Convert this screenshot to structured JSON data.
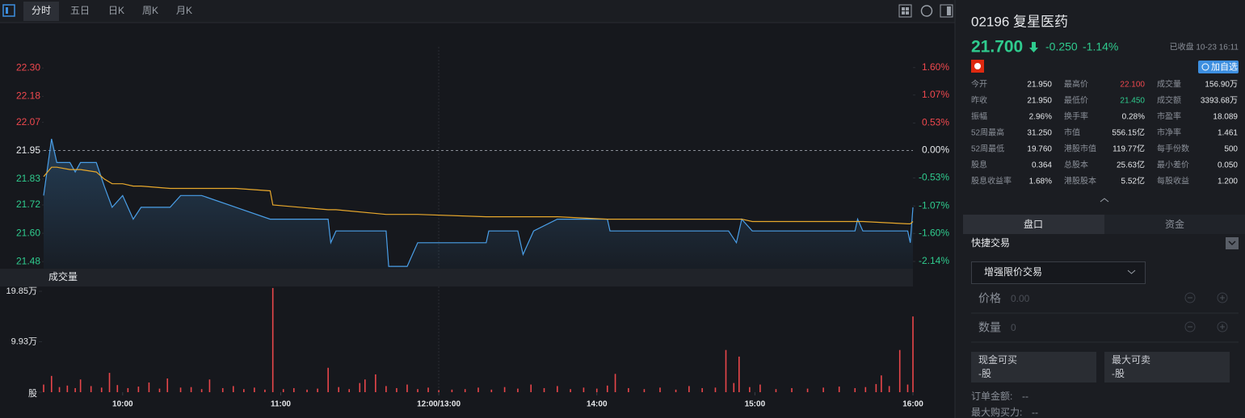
{
  "toolbar": {
    "tabs": [
      "分时",
      "五日",
      "日K",
      "周K",
      "月K"
    ]
  },
  "chart_data": [
    {
      "type": "line",
      "xlim": [
        0,
        330
      ],
      "x": [
        0,
        3,
        5,
        10,
        12,
        14,
        20,
        23,
        26,
        30,
        34,
        37,
        48,
        52,
        60,
        73,
        86,
        87,
        108,
        109,
        111,
        130,
        131,
        138,
        140,
        142,
        168,
        169,
        180,
        182,
        186,
        195,
        214,
        215,
        260,
        263,
        265,
        269,
        308,
        309,
        311,
        328,
        329,
        330
      ],
      "series": [
        {
          "color": "#4a9fe8",
          "values": [
            21.76,
            22.0,
            21.9,
            21.9,
            21.86,
            21.9,
            21.9,
            21.8,
            21.71,
            21.76,
            21.66,
            21.71,
            21.71,
            21.76,
            21.76,
            21.71,
            21.66,
            21.66,
            21.66,
            21.56,
            21.61,
            21.61,
            21.46,
            21.46,
            21.51,
            21.56,
            21.56,
            21.61,
            21.61,
            21.51,
            21.61,
            21.66,
            21.66,
            21.61,
            21.61,
            21.56,
            21.66,
            21.61,
            21.61,
            21.66,
            21.61,
            21.61,
            21.56,
            21.71
          ]
        },
        {
          "color": "#e8a82c",
          "values": [
            21.84,
            21.88,
            21.88,
            21.87,
            21.87,
            21.87,
            21.86,
            21.83,
            21.81,
            21.81,
            21.8,
            21.8,
            21.79,
            21.79,
            21.79,
            21.79,
            21.78,
            21.72,
            21.7,
            21.7,
            21.7,
            21.68,
            21.68,
            21.68,
            21.68,
            21.68,
            21.67,
            21.67,
            21.67,
            21.67,
            21.67,
            21.67,
            21.66,
            21.66,
            21.66,
            21.66,
            21.66,
            21.65,
            21.65,
            21.65,
            21.65,
            21.64,
            21.64,
            21.65
          ]
        }
      ],
      "ylim": [
        21.45,
        22.39
      ],
      "yticks": [
        {
          "value": 22.3,
          "label": "22.30"
        },
        22.18,
        22.07,
        21.95,
        21.83,
        21.72,
        {
          "value": 21.6,
          "label": "21.60"
        },
        21.48
      ],
      "y2lim": [
        -2.28,
        2.0
      ],
      "y2ticks": [
        {
          "value": 1.6,
          "label": "1.60%"
        },
        {
          "value": 1.07,
          "label": "1.07%"
        },
        {
          "value": 0.53,
          "label": "0.53%"
        },
        {
          "value": 0,
          "label": "0.00%"
        },
        {
          "value": -0.53,
          "label": "-0.53%"
        },
        {
          "value": -1.07,
          "label": "-1.07%"
        },
        {
          "value": -1.6,
          "label": "-1.60%"
        },
        {
          "value": -2.14,
          "label": "-2.14%"
        }
      ]
    },
    {
      "type": "bar",
      "title": "成交量",
      "color": "#e8464a",
      "xlim": [
        0,
        330
      ],
      "xticks": [
        {
          "value": 30,
          "label": "10:00"
        },
        {
          "value": 90,
          "label": "11:00"
        },
        {
          "value": 150,
          "label": "12:00/13:00"
        },
        {
          "value": 210,
          "label": "14:00"
        },
        {
          "value": 270,
          "label": "15:00"
        },
        {
          "value": 330,
          "label": "16:00"
        }
      ],
      "x": [
        0,
        3,
        6,
        9,
        12,
        14,
        18,
        22,
        25,
        28,
        32,
        36,
        40,
        44,
        47,
        52,
        56,
        60,
        63,
        68,
        72,
        76,
        80,
        84,
        87,
        91,
        95,
        100,
        104,
        108,
        112,
        116,
        120,
        122,
        126,
        130,
        134,
        138,
        142,
        146,
        150,
        155,
        160,
        165,
        170,
        175,
        180,
        185,
        190,
        195,
        200,
        205,
        210,
        214,
        217,
        222,
        228,
        234,
        240,
        245,
        250,
        255,
        259,
        262,
        264,
        268,
        272,
        278,
        284,
        290,
        296,
        302,
        308,
        312,
        316,
        318,
        321,
        325,
        328,
        330
      ],
      "values": [
        1.5,
        3.2,
        1.0,
        1.3,
        0.8,
        2.5,
        1.2,
        0.9,
        3.8,
        1.4,
        0.8,
        1.1,
        1.9,
        0.7,
        2.7,
        0.9,
        1.0,
        0.6,
        2.5,
        0.8,
        1.2,
        0.6,
        0.9,
        0.5,
        20.5,
        0.6,
        0.8,
        0.5,
        0.7,
        4.8,
        1.0,
        0.6,
        1.8,
        2.5,
        3.5,
        1.2,
        0.8,
        1.5,
        0.6,
        0.9,
        0.4,
        0.5,
        0.6,
        0.9,
        0.5,
        1.0,
        0.7,
        1.5,
        0.8,
        1.2,
        0.6,
        0.9,
        0.7,
        1.3,
        3.6,
        0.8,
        0.6,
        0.9,
        0.5,
        1.2,
        0.8,
        0.9,
        8.3,
        1.8,
        7.0,
        1.0,
        1.5,
        0.6,
        0.8,
        0.7,
        0.9,
        1.1,
        0.8,
        1.0,
        1.6,
        3.3,
        1.2,
        8.3,
        1.5,
        14.9
      ],
      "ylim": [
        0,
        20.8
      ],
      "yticks": [
        {
          "value": 19.85,
          "label": "19.85万"
        },
        {
          "value": 9.93,
          "label": "9.93万"
        },
        {
          "value": 0,
          "label": "股"
        }
      ]
    }
  ],
  "quote": {
    "name": "02196 复星医药",
    "price": "21.700",
    "change": "-0.250",
    "change_pct": "-1.14%",
    "status": "已收盘 10-23 16:11",
    "watch_button": "加自选"
  },
  "stats": {
    "rows": [
      [
        "今开",
        "21.950",
        "最高价",
        "22.100",
        "成交量",
        "156.90万"
      ],
      [
        "昨收",
        "21.950",
        "最低价",
        "21.450",
        "成交额",
        "3393.68万"
      ],
      [
        "振幅",
        "2.96%",
        "换手率",
        "0.28%",
        "市盈率",
        "18.089"
      ],
      [
        "52周最高",
        "31.250",
        "市值",
        "556.15亿",
        "市净率",
        "1.461"
      ],
      [
        "52周最低",
        "19.760",
        "港股市值",
        "119.77亿",
        "每手份数",
        "500"
      ],
      [
        "股息",
        "0.364",
        "总股本",
        "25.63亿",
        "最小差价",
        "0.050"
      ],
      [
        "股息收益率",
        "1.68%",
        "港股股本",
        "5.52亿",
        "每股收益",
        "1.200"
      ]
    ]
  },
  "panel_tabs": [
    "盘口",
    "资金"
  ],
  "trade": {
    "title": "快捷交易",
    "order_type": "增强限价交易",
    "price_label": "价格",
    "price_placeholder": "0.00",
    "qty_label": "数量",
    "qty_placeholder": "0",
    "cash_buy_label": "现金可买",
    "cash_buy_value": "-股",
    "max_sell_label": "最大可卖",
    "max_sell_value": "-股",
    "order_amount_label": "订单金额:",
    "order_amount_value": "--",
    "max_power_label": "最大购买力:",
    "max_power_value": "--"
  }
}
